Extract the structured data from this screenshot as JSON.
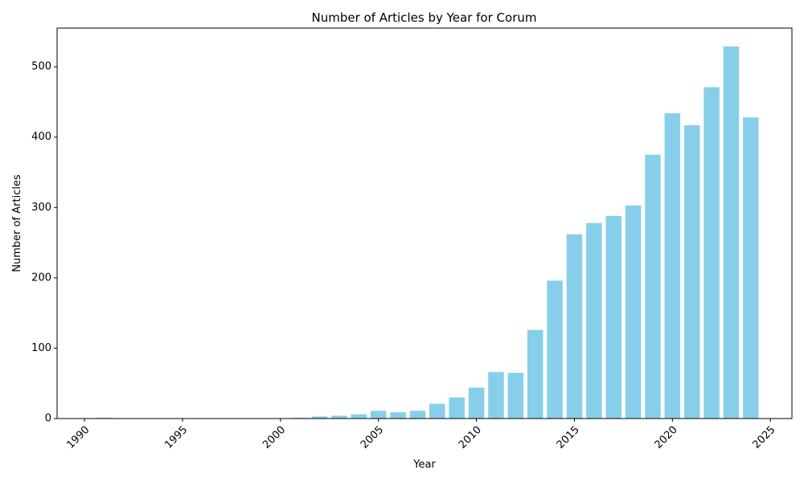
{
  "chart_data": {
    "type": "bar",
    "title": "Number of Articles by Year for Corum",
    "xlabel": "Year",
    "ylabel": "Number of Articles",
    "xlim": [
      1988.6,
      2026.1
    ],
    "ylim": [
      0,
      555
    ],
    "x_ticks": [
      1990,
      1995,
      2000,
      2005,
      2010,
      2015,
      2020,
      2025
    ],
    "y_ticks": [
      0,
      100,
      200,
      300,
      400,
      500
    ],
    "x_tick_rotation": 45,
    "grid": false,
    "legend": "none",
    "bar_color": "#87CEEB",
    "bars": [
      {
        "year": 1991,
        "value": 1
      },
      {
        "year": 2001,
        "value": 1
      },
      {
        "year": 2002,
        "value": 3
      },
      {
        "year": 2003,
        "value": 4
      },
      {
        "year": 2004,
        "value": 6
      },
      {
        "year": 2005,
        "value": 11
      },
      {
        "year": 2006,
        "value": 9
      },
      {
        "year": 2007,
        "value": 11
      },
      {
        "year": 2008,
        "value": 21
      },
      {
        "year": 2009,
        "value": 30
      },
      {
        "year": 2010,
        "value": 44
      },
      {
        "year": 2011,
        "value": 66
      },
      {
        "year": 2012,
        "value": 65
      },
      {
        "year": 2013,
        "value": 126
      },
      {
        "year": 2014,
        "value": 196
      },
      {
        "year": 2015,
        "value": 262
      },
      {
        "year": 2016,
        "value": 278
      },
      {
        "year": 2017,
        "value": 288
      },
      {
        "year": 2018,
        "value": 303
      },
      {
        "year": 2019,
        "value": 375
      },
      {
        "year": 2020,
        "value": 434
      },
      {
        "year": 2021,
        "value": 417
      },
      {
        "year": 2022,
        "value": 471
      },
      {
        "year": 2023,
        "value": 529
      },
      {
        "year": 2024,
        "value": 428
      }
    ]
  }
}
